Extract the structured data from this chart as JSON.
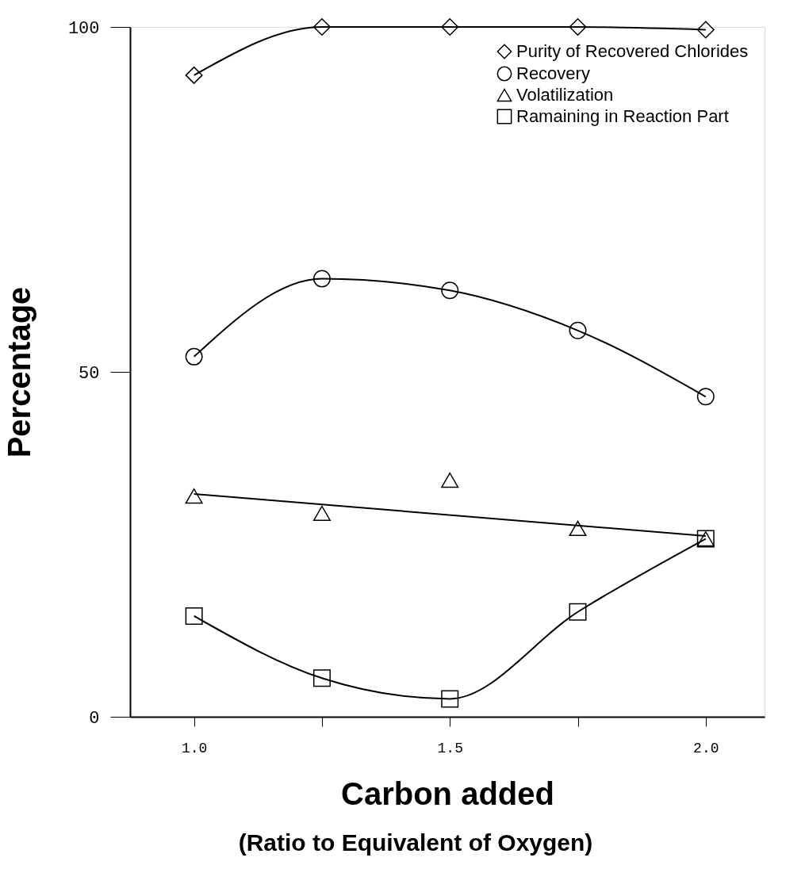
{
  "chart_data": {
    "type": "line",
    "xlabel": "Carbon added",
    "ylabel": "Percentage",
    "annotations": [
      "(Ratio to Equivalent of Oxygen)"
    ],
    "x": [
      1.0,
      1.25,
      1.5,
      1.75,
      2.0
    ],
    "xlim": [
      0.875,
      2.115
    ],
    "ylim": [
      0,
      100
    ],
    "xticks": [
      {
        "value": 1.0,
        "label": "1.0"
      },
      {
        "value": 1.25,
        "label": null
      },
      {
        "value": 1.5,
        "label": "1.5"
      },
      {
        "value": 1.75,
        "label": null
      },
      {
        "value": 2.0,
        "label": "2.0"
      }
    ],
    "yticks": [
      0,
      50,
      100
    ],
    "grid": false,
    "legend": "top right",
    "line_style": "solid",
    "series": [
      {
        "name": "Purity of Recovered Chlorides",
        "color": "#000000",
        "marker": "diamond",
        "values": [
          93.0,
          100,
          100,
          100,
          99.6
        ]
      },
      {
        "name": "Recovery",
        "color": "#000000",
        "marker": "circle",
        "values": [
          52.2,
          63.5,
          61.8,
          56.0,
          46.4
        ]
      },
      {
        "name": "Volatilization",
        "type": "scatter",
        "color": "#000000",
        "marker": "triangle",
        "values": [
          32.0,
          29.5,
          34.3,
          27.3,
          25.8
        ]
      },
      {
        "type": "line",
        "color": "#000000",
        "marker": "none",
        "x": [
          1.0,
          2.0
        ],
        "values": [
          32.3,
          26.2
        ]
      },
      {
        "name": "Ramaining in Reaction Part",
        "color": "#000000",
        "marker": "square",
        "values": [
          14.6,
          5.6,
          2.6,
          15.2,
          25.8
        ]
      }
    ]
  }
}
